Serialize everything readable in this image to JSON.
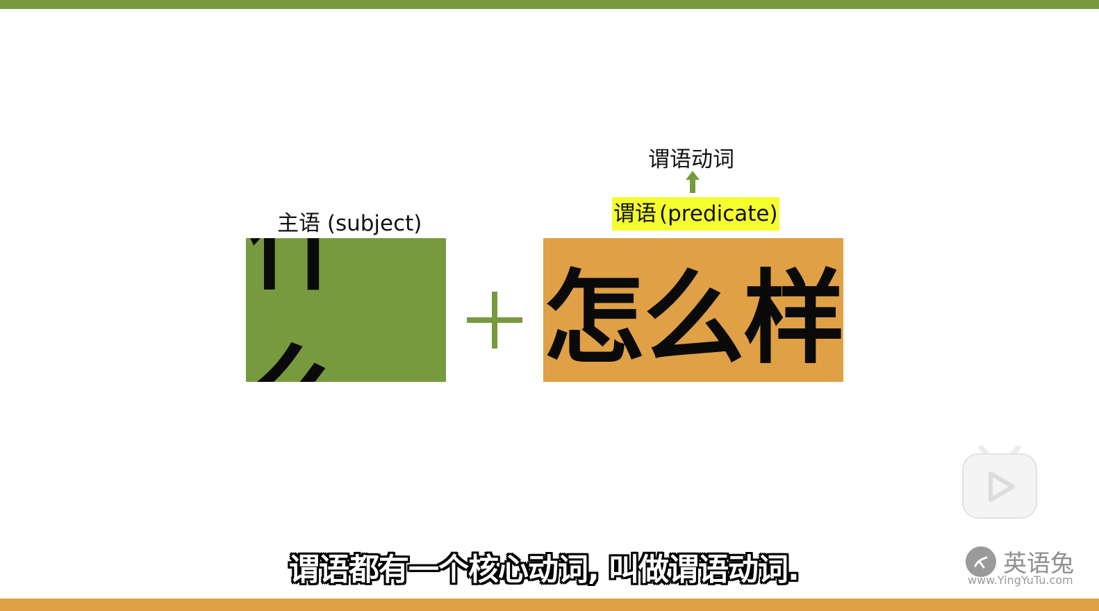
{
  "slide": {
    "subject_label": "主语 (subject)",
    "predicate_label_cn": "谓语",
    "predicate_label_en": "(predicate)",
    "verb_label": "谓语动词",
    "subject_box_text": "什么",
    "plus_symbol": "+",
    "predicate_box_text": "怎么样"
  },
  "subtitle": {
    "text": "谓语都有一个核心动词, 叫做谓语动词."
  },
  "watermark": {
    "brand": "英语兔",
    "url": "www.YingYuTu.com"
  },
  "icons": {
    "arrow": "arrow-up-icon",
    "play_logo": "tv-play-icon",
    "brand_badge": "rabbit-logo-icon"
  },
  "colors": {
    "green": "#789a3f",
    "orange": "#dfa046",
    "highlight": "#f5ff2e"
  }
}
